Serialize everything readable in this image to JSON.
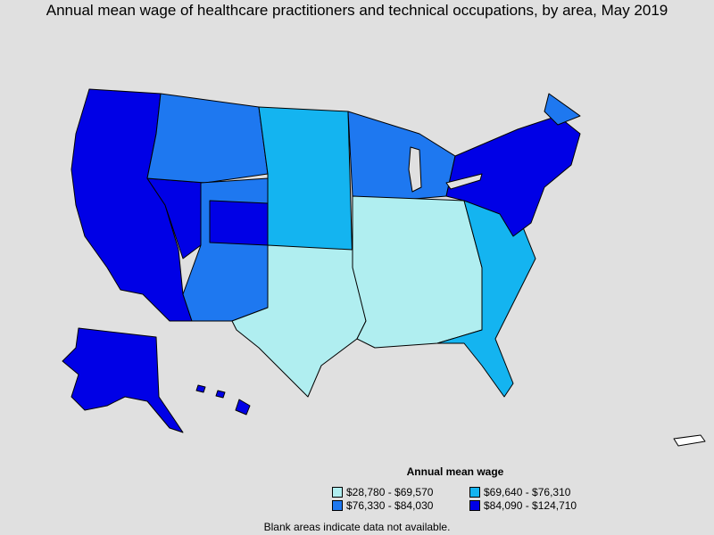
{
  "title": "Annual mean wage of healthcare practitioners and technical occupations, by area, May 2019",
  "legend": {
    "title": "Annual mean wage",
    "items": [
      {
        "label": "$28,780 - $69,570",
        "color": "#b0eef0"
      },
      {
        "label": "$69,640 - $76,310",
        "color": "#14b4f0"
      },
      {
        "label": "$76,330 - $84,030",
        "color": "#1e78f0"
      },
      {
        "label": "$84,090 - $124,710",
        "color": "#0000e6"
      }
    ]
  },
  "note": "Blank areas indicate data not available.",
  "colors": {
    "background": "#e0e0e0",
    "border": "#000000"
  }
}
